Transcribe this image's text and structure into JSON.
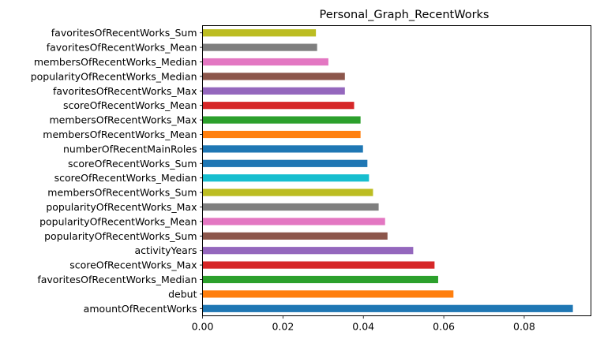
{
  "chart_data": {
    "type": "bar",
    "orientation": "horizontal",
    "title": "Personal_Graph_RecentWorks",
    "xlabel": "",
    "ylabel": "",
    "xlim": [
      0,
      0.0966
    ],
    "xticks": [
      0.0,
      0.02,
      0.04,
      0.06,
      0.08
    ],
    "xtick_labels": [
      "0.00",
      "0.02",
      "0.04",
      "0.06",
      "0.08"
    ],
    "grid": false,
    "categories": [
      "amountOfRecentWorks",
      "debut",
      "favoritesOfRecentWorks_Median",
      "scoreOfRecentWorks_Max",
      "activityYears",
      "popularityOfRecentWorks_Sum",
      "popularityOfRecentWorks_Mean",
      "popularityOfRecentWorks_Max",
      "membersOfRecentWorks_Sum",
      "scoreOfRecentWorks_Median",
      "scoreOfRecentWorks_Sum",
      "numberOfRecentMainRoles",
      "membersOfRecentWorks_Mean",
      "membersOfRecentWorks_Max",
      "scoreOfRecentWorks_Mean",
      "favoritesOfRecentWorks_Max",
      "popularityOfRecentWorks_Median",
      "membersOfRecentWorks_Median",
      "favoritesOfRecentWorks_Mean",
      "favoritesOfRecentWorks_Sum"
    ],
    "values": [
      0.0921,
      0.0624,
      0.0586,
      0.0577,
      0.0524,
      0.046,
      0.0454,
      0.0438,
      0.0424,
      0.0414,
      0.041,
      0.0399,
      0.0393,
      0.0393,
      0.0377,
      0.0354,
      0.0354,
      0.0313,
      0.0285,
      0.0282
    ],
    "colors": [
      "#1f77b4",
      "#ff7f0e",
      "#2ca02c",
      "#d62728",
      "#9467bd",
      "#8c564b",
      "#e377c2",
      "#7f7f7f",
      "#bcbd22",
      "#17becf",
      "#1f77b4",
      "#1f77b4",
      "#ff7f0e",
      "#2ca02c",
      "#d62728",
      "#9467bd",
      "#8c564b",
      "#e377c2",
      "#7f7f7f",
      "#bcbd22"
    ]
  }
}
